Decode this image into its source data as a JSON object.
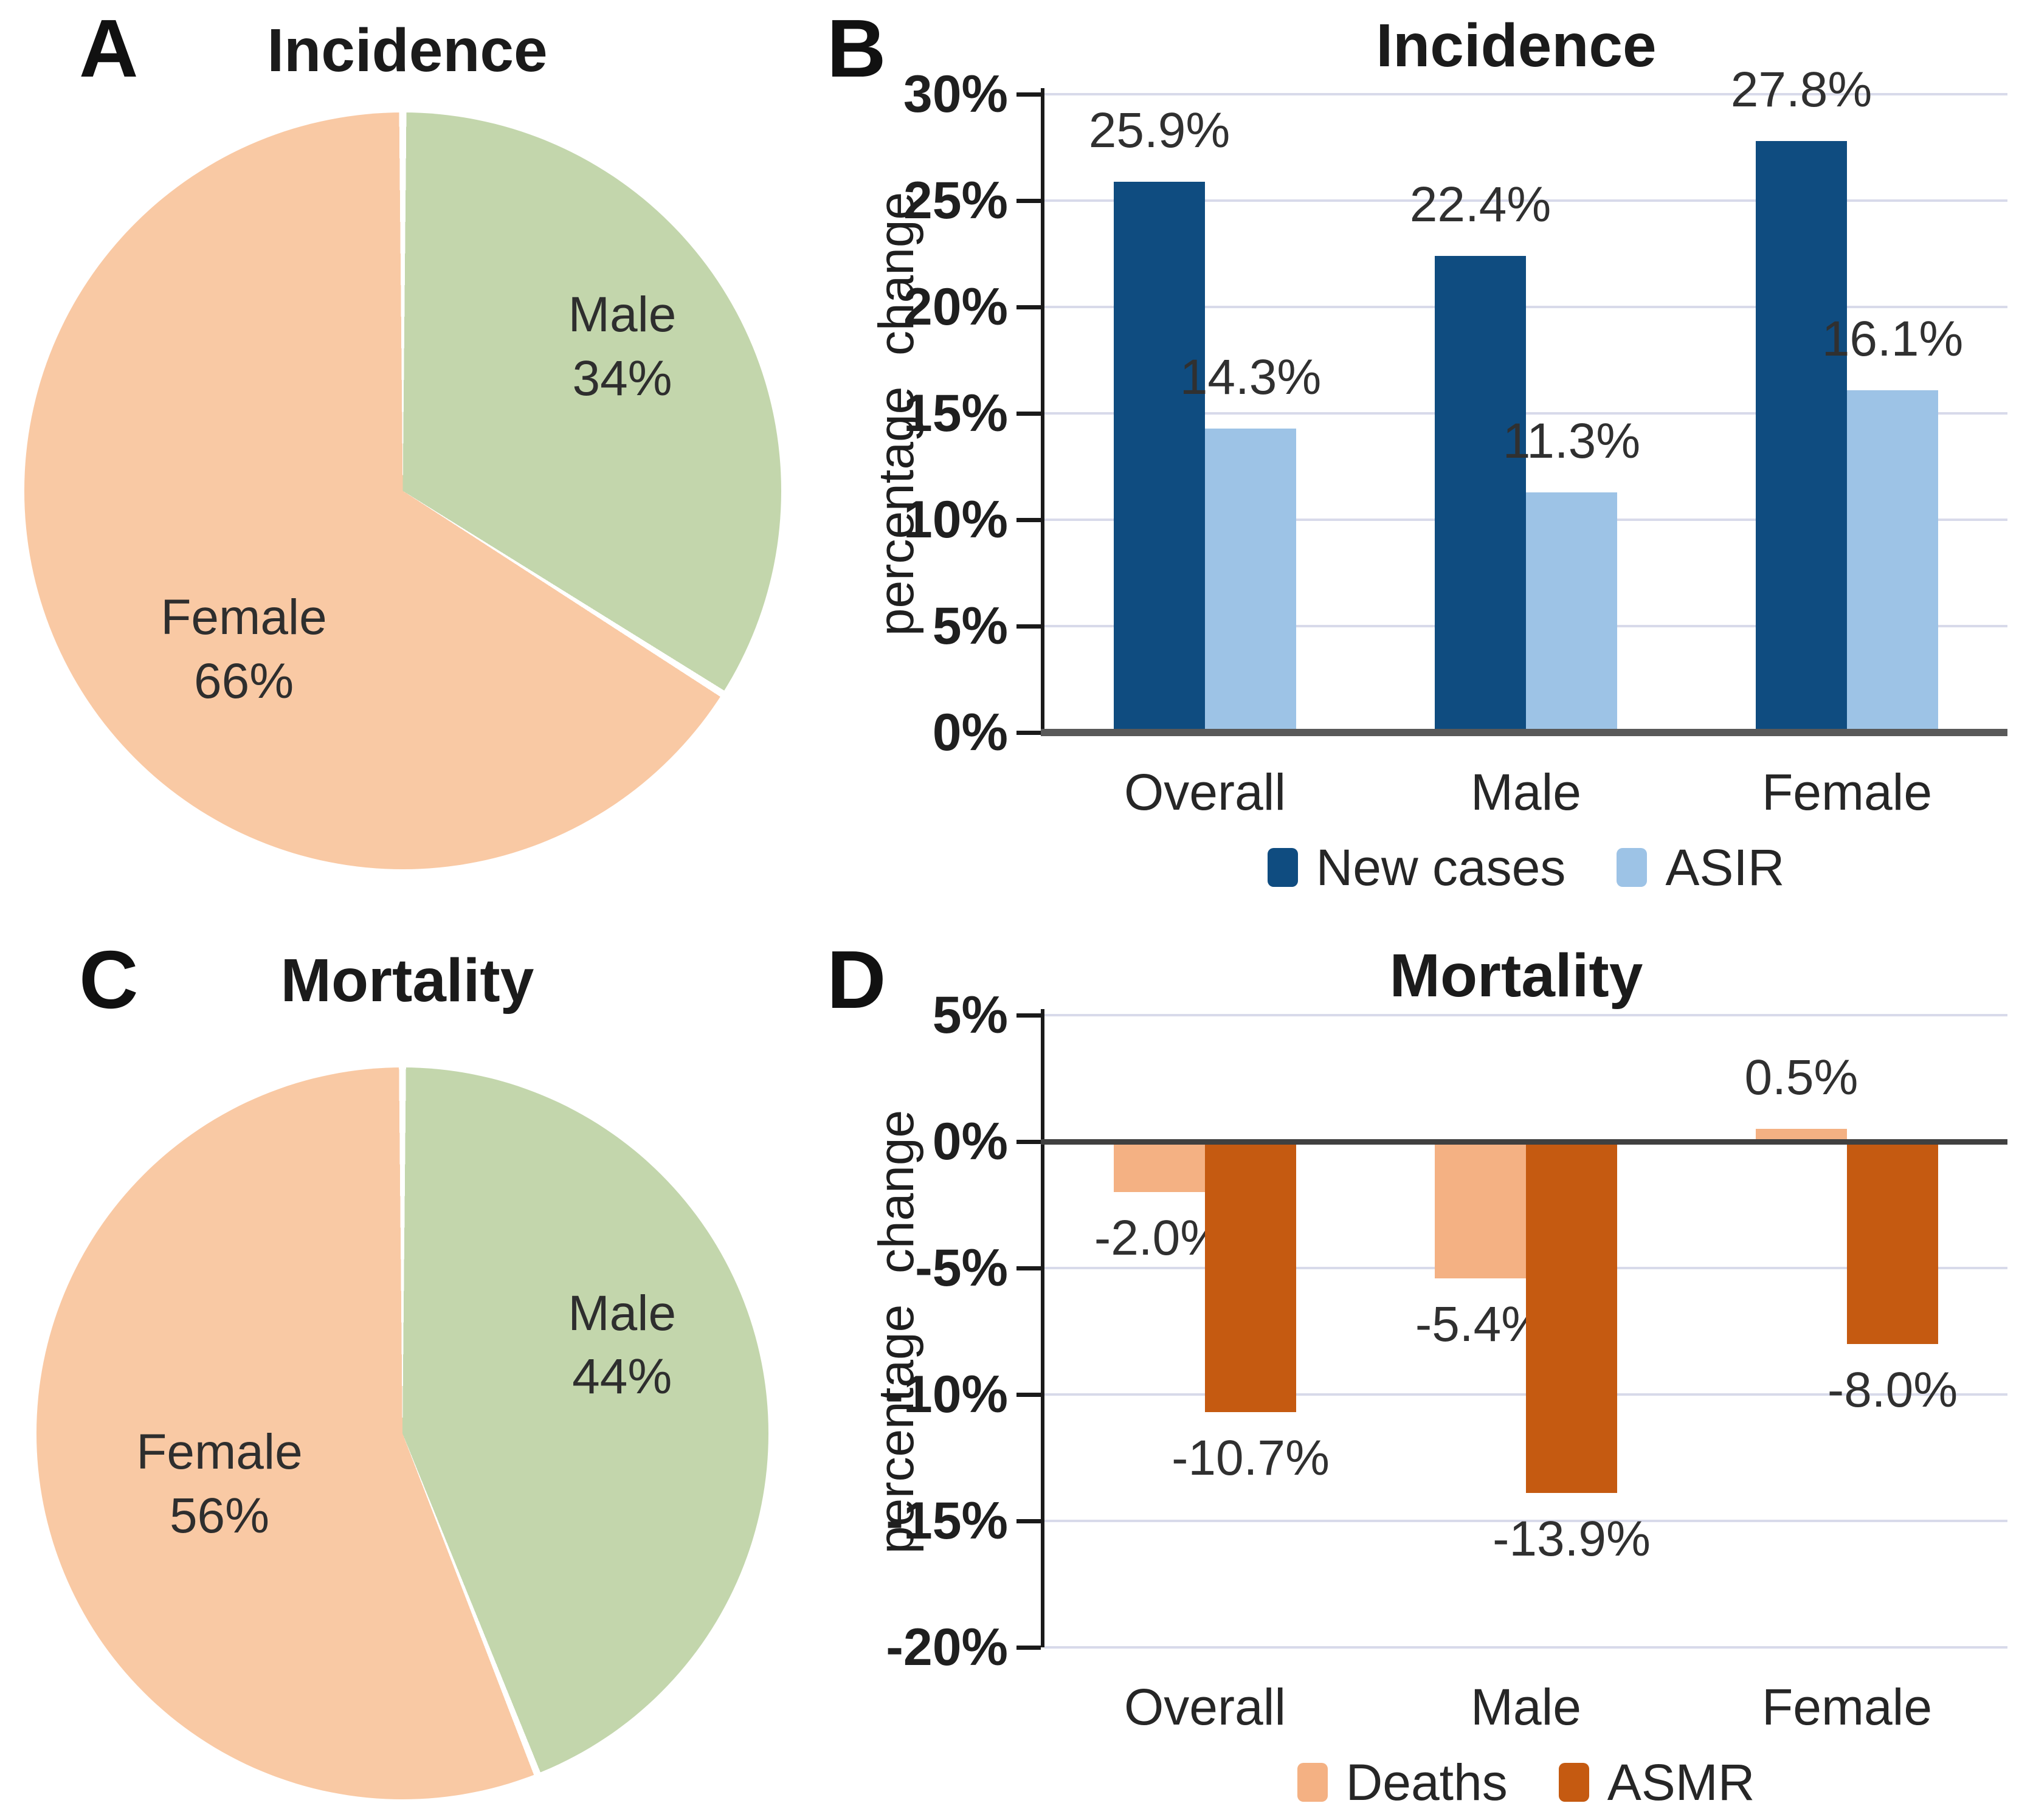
{
  "chart_data": [
    {
      "panel": "A",
      "type": "pie",
      "title": "Incidence",
      "start_angle_deg": 0,
      "direction": "clockwise",
      "slices": [
        {
          "label": "Male",
          "value": 34,
          "value_label": "34%",
          "color": "#C3D6AC"
        },
        {
          "label": "Female",
          "value": 66,
          "value_label": "66%",
          "color": "#F9C9A4"
        }
      ]
    },
    {
      "panel": "B",
      "type": "bar",
      "title": "Incidence",
      "ylabel": "percentage change",
      "categories": [
        "Overall",
        "Male",
        "Female"
      ],
      "series": [
        {
          "name": "New cases",
          "color": "#0F4C80",
          "values": [
            25.9,
            22.4,
            27.8
          ],
          "value_labels": [
            "25.9%",
            "22.4%",
            "27.8%"
          ]
        },
        {
          "name": "ASIR",
          "color": "#9DC3E6",
          "values": [
            14.3,
            11.3,
            16.1
          ],
          "value_labels": [
            "14.3%",
            "11.3%",
            "16.1%"
          ]
        }
      ],
      "ylim": [
        0,
        30
      ],
      "yticks": [
        {
          "value": 30,
          "label": "30%"
        },
        {
          "value": 25,
          "label": "25%"
        },
        {
          "value": 20,
          "label": "20%"
        },
        {
          "value": 15,
          "label": "15%"
        },
        {
          "value": 10,
          "label": "10%"
        },
        {
          "value": 5,
          "label": "5%"
        },
        {
          "value": 0,
          "label": "0%"
        }
      ],
      "grid": true,
      "legend_position": "bottom"
    },
    {
      "panel": "C",
      "type": "pie",
      "title": "Mortality",
      "start_angle_deg": 0,
      "direction": "clockwise",
      "slices": [
        {
          "label": "Male",
          "value": 44,
          "value_label": "44%",
          "color": "#C3D6AC"
        },
        {
          "label": "Female",
          "value": 56,
          "value_label": "56%",
          "color": "#F9C9A4"
        }
      ]
    },
    {
      "panel": "D",
      "type": "bar",
      "title": "Mortality",
      "ylabel": "percentage change",
      "categories": [
        "Overall",
        "Male",
        "Female"
      ],
      "series": [
        {
          "name": "Deaths",
          "color": "#F4B183",
          "values": [
            -2.0,
            -5.4,
            0.5
          ],
          "value_labels": [
            "-2.0%",
            "-5.4%",
            "0.5%"
          ]
        },
        {
          "name": "ASMR",
          "color": "#C55A11",
          "values": [
            -10.7,
            -13.9,
            -8.0
          ],
          "value_labels": [
            "-10.7%",
            "-13.9%",
            "-8.0%"
          ]
        }
      ],
      "ylim": [
        -20,
        5
      ],
      "yticks": [
        {
          "value": 5,
          "label": "5%"
        },
        {
          "value": 0,
          "label": "0%"
        },
        {
          "value": -5,
          "label": "-5%"
        },
        {
          "value": -10,
          "label": "-10%"
        },
        {
          "value": -15,
          "label": "-15%"
        },
        {
          "value": -20,
          "label": "-20%"
        }
      ],
      "grid": true,
      "legend_position": "bottom"
    }
  ],
  "style": {
    "background": "#FFFFFF",
    "grid_color": "#D8DAEA",
    "axis_color": "#1A1A1A",
    "incidence_baseline_color": "#595959",
    "mortality_zero_line_color": "#404040",
    "text_color": "#262626",
    "pie_divider_color": "#FFFFFF"
  }
}
